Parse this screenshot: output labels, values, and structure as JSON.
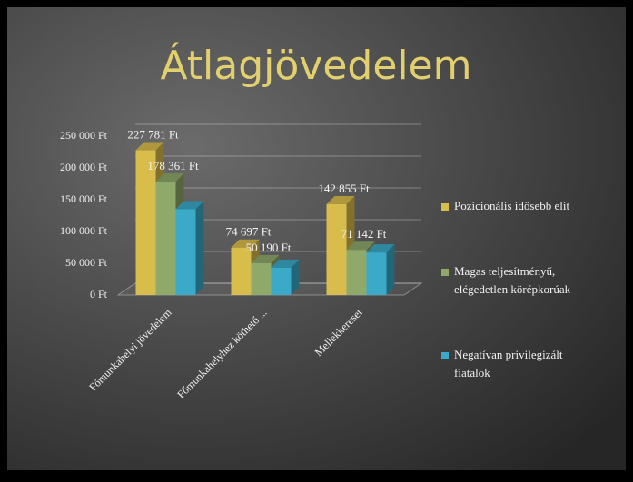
{
  "chart_data": {
    "type": "bar",
    "title": "Átlagjövedelem",
    "categories": [
      "Főmunkahelyi jövedelem",
      "Főmunkahelyhez köthető ...",
      "Mellékkereset"
    ],
    "series": [
      {
        "name": "Pozicionális idősebb elit",
        "color": "#d9bd4c",
        "values": [
          227781,
          74697,
          142855
        ],
        "value_labels": [
          "227 781 Ft",
          "74 697 Ft",
          "142 855 Ft"
        ]
      },
      {
        "name": "Magas teljesítményű, elégedetlen körépkorúak",
        "color": "#8fa96b",
        "values": [
          178361,
          50190,
          71142
        ],
        "value_labels": [
          "178 361 Ft",
          "50 190 Ft",
          "71 142 Ft"
        ]
      },
      {
        "name": "Negatívan privilegizált fiatalok",
        "color": "#3aaac8",
        "values": [
          135000,
          43000,
          67000
        ]
      }
    ],
    "ylim": [
      0,
      250000
    ],
    "yticks": [
      {
        "value": 0,
        "label": "0 Ft"
      },
      {
        "value": 50000,
        "label": "50 000 Ft"
      },
      {
        "value": 100000,
        "label": "100 000 Ft"
      },
      {
        "value": 150000,
        "label": "150 000 Ft"
      },
      {
        "value": 200000,
        "label": "200 000 Ft"
      },
      {
        "value": 250000,
        "label": "250 000 Ft"
      }
    ],
    "grid": true,
    "legend": "right"
  }
}
